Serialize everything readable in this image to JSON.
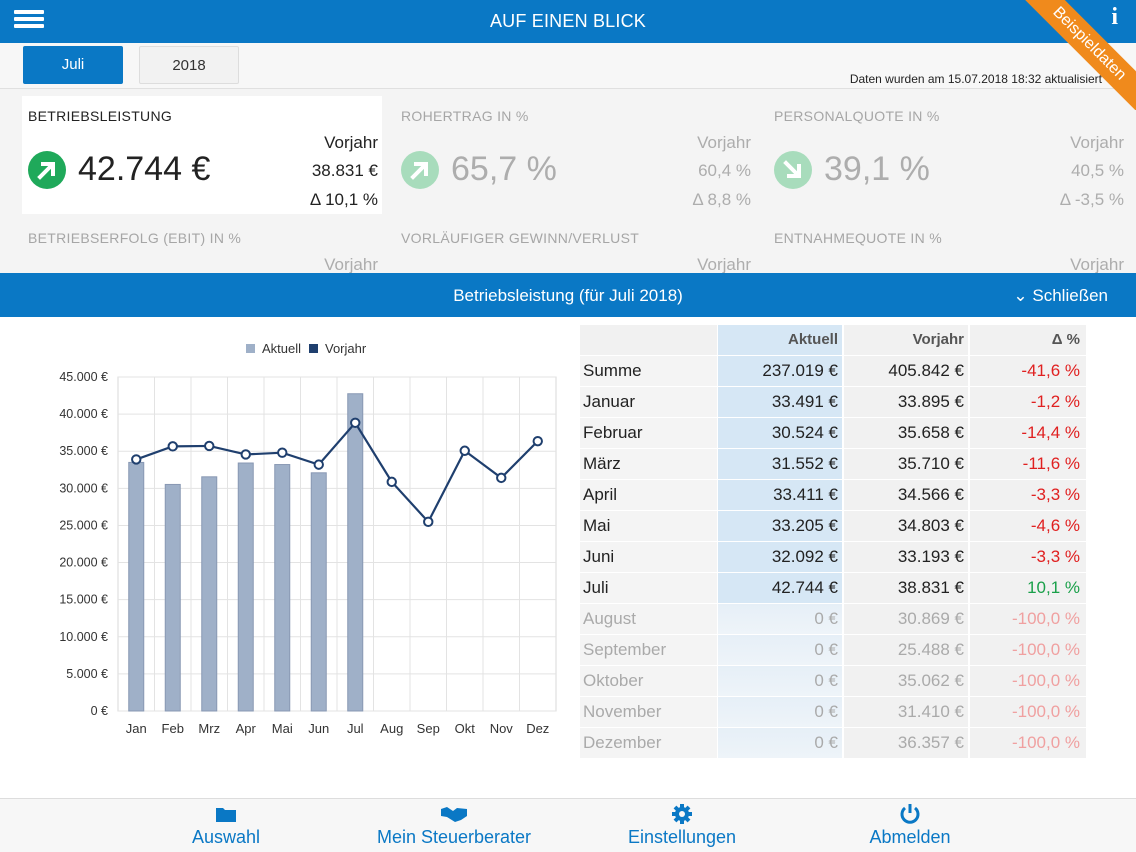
{
  "header": {
    "title": "AUF EINEN BLICK",
    "ribbon": "Beispieldaten",
    "info_label": "i"
  },
  "tabs": [
    {
      "label": "Juli",
      "active": true
    },
    {
      "label": "2018",
      "active": false
    }
  ],
  "updated": "Daten wurden am 15.07.2018 18:32 aktualisiert",
  "kpis": [
    {
      "label": "BETRIEBSLEISTUNG",
      "value": "42.744 €",
      "prev_label": "Vorjahr",
      "prev_value": "38.831 €",
      "delta": "Δ 10,1 %",
      "trend": "up"
    },
    {
      "label": "ROHERTRAG IN %",
      "value": "65,7 %",
      "prev_label": "Vorjahr",
      "prev_value": "60,4 %",
      "delta": "Δ 8,8 %",
      "trend": "up"
    },
    {
      "label": "PERSONALQUOTE IN %",
      "value": "39,1 %",
      "prev_label": "Vorjahr",
      "prev_value": "40,5 %",
      "delta": "Δ -3,5 %",
      "trend": "down"
    },
    {
      "label": "BETRIEBSERFOLG (EBIT) IN %",
      "prev_label": "Vorjahr"
    },
    {
      "label": "VORLÄUFIGER GEWINN/VERLUST",
      "prev_label": "Vorjahr"
    },
    {
      "label": "ENTNAHMEQUOTE IN %",
      "prev_label": "Vorjahr"
    }
  ],
  "detail": {
    "title": "Betriebsleistung (für Juli 2018)",
    "close_label": "Schließen"
  },
  "table": {
    "headers": [
      "",
      "Aktuell",
      "Vorjahr",
      "Δ %"
    ],
    "rows": [
      {
        "name": "Summe",
        "akt": "237.019 €",
        "vj": "405.842 €",
        "dl": "-41,6 %",
        "sign": "neg",
        "future": false
      },
      {
        "name": "Januar",
        "akt": "33.491 €",
        "vj": "33.895 €",
        "dl": "-1,2 %",
        "sign": "neg",
        "future": false
      },
      {
        "name": "Februar",
        "akt": "30.524 €",
        "vj": "35.658 €",
        "dl": "-14,4 %",
        "sign": "neg",
        "future": false
      },
      {
        "name": "März",
        "akt": "31.552 €",
        "vj": "35.710 €",
        "dl": "-11,6 %",
        "sign": "neg",
        "future": false
      },
      {
        "name": "April",
        "akt": "33.411 €",
        "vj": "34.566 €",
        "dl": "-3,3 %",
        "sign": "neg",
        "future": false
      },
      {
        "name": "Mai",
        "akt": "33.205 €",
        "vj": "34.803 €",
        "dl": "-4,6 %",
        "sign": "neg",
        "future": false
      },
      {
        "name": "Juni",
        "akt": "32.092 €",
        "vj": "33.193 €",
        "dl": "-3,3 %",
        "sign": "neg",
        "future": false
      },
      {
        "name": "Juli",
        "akt": "42.744 €",
        "vj": "38.831 €",
        "dl": "10,1 %",
        "sign": "pos",
        "future": false
      },
      {
        "name": "August",
        "akt": "0 €",
        "vj": "30.869 €",
        "dl": "-100,0 %",
        "sign": "neg",
        "future": true
      },
      {
        "name": "September",
        "akt": "0 €",
        "vj": "25.488 €",
        "dl": "-100,0 %",
        "sign": "neg",
        "future": true
      },
      {
        "name": "Oktober",
        "akt": "0 €",
        "vj": "35.062 €",
        "dl": "-100,0 %",
        "sign": "neg",
        "future": true
      },
      {
        "name": "November",
        "akt": "0 €",
        "vj": "31.410 €",
        "dl": "-100,0 %",
        "sign": "neg",
        "future": true
      },
      {
        "name": "Dezember",
        "akt": "0 €",
        "vj": "36.357 €",
        "dl": "-100,0 %",
        "sign": "neg",
        "future": true
      }
    ]
  },
  "chart_data": {
    "type": "bar",
    "categories": [
      "Jan",
      "Feb",
      "Mrz",
      "Apr",
      "Mai",
      "Jun",
      "Jul",
      "Aug",
      "Sep",
      "Okt",
      "Nov",
      "Dez"
    ],
    "series": [
      {
        "name": "Aktuell",
        "type": "bar",
        "values": [
          33491,
          30524,
          31552,
          33411,
          33205,
          32092,
          42744,
          null,
          null,
          null,
          null,
          null
        ],
        "color": "#9fb0c8"
      },
      {
        "name": "Vorjahr",
        "type": "line",
        "values": [
          33895,
          35658,
          35710,
          34566,
          34803,
          33193,
          38831,
          30869,
          25488,
          35062,
          31410,
          36357
        ],
        "color": "#1f3f6e"
      }
    ],
    "yticks": [
      "0 €",
      "5.000 €",
      "10.000 €",
      "15.000 €",
      "20.000 €",
      "25.000 €",
      "30.000 €",
      "35.000 €",
      "40.000 €",
      "45.000 €"
    ],
    "ylim": [
      0,
      45000
    ],
    "grid": true,
    "legend": "top-center"
  },
  "bottom_nav": [
    {
      "label": "Auswahl",
      "icon": "folder-icon"
    },
    {
      "label": "Mein Steuerberater",
      "icon": "handshake-icon"
    },
    {
      "label": "Einstellungen",
      "icon": "gear-icon"
    },
    {
      "label": "Abmelden",
      "icon": "power-icon"
    }
  ]
}
